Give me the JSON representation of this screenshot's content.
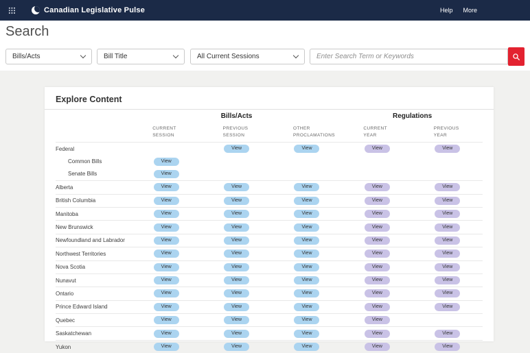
{
  "header": {
    "title": "Canadian Legislative Pulse",
    "links": {
      "help": "Help",
      "more": "More"
    }
  },
  "search": {
    "heading": "Search",
    "filters": [
      {
        "value": "Bills/Acts"
      },
      {
        "value": "Bill Title"
      },
      {
        "value": "All Current Sessions"
      }
    ],
    "placeholder": "Enter Search Term or Keywords"
  },
  "colors": {
    "header_bg": "#1b2a47",
    "accent_red": "#e32230",
    "bills_button": "#abd4f0",
    "regulations_button": "#c9c2e6"
  },
  "explore": {
    "title": "Explore Content",
    "groups": [
      {
        "label": "Bills/Acts",
        "span": 3
      },
      {
        "label": "Regulations",
        "span": 2
      }
    ],
    "columns": [
      {
        "label": "CURRENT SESSION",
        "lines": "CURRENT\nSESSION",
        "group": "bills"
      },
      {
        "label": "PREVIOUS SESSION",
        "lines": "PREVIOUS\nSESSION",
        "group": "bills"
      },
      {
        "label": "OTHER PROCLAMATIONS",
        "lines": "OTHER\nPROCLAMATIONS",
        "group": "bills"
      },
      {
        "label": "CURRENT YEAR",
        "lines": "CURRENT\nYEAR",
        "group": "regulations"
      },
      {
        "label": "PREVIOUS YEAR",
        "lines": "PREVIOUS\nYEAR",
        "group": "regulations"
      }
    ],
    "view_label": "View",
    "rows": [
      {
        "label": "Federal",
        "indent": false,
        "buttons": [
          false,
          true,
          true,
          true,
          true
        ]
      },
      {
        "label": "Common Bills",
        "indent": true,
        "buttons": [
          true,
          false,
          false,
          false,
          false
        ]
      },
      {
        "label": "Senate Bills",
        "indent": true,
        "buttons": [
          true,
          false,
          false,
          false,
          false
        ]
      },
      {
        "label": "Alberta",
        "indent": false,
        "buttons": [
          true,
          true,
          true,
          true,
          true
        ]
      },
      {
        "label": "British Columbia",
        "indent": false,
        "buttons": [
          true,
          true,
          true,
          true,
          true
        ]
      },
      {
        "label": "Manitoba",
        "indent": false,
        "buttons": [
          true,
          true,
          true,
          true,
          true
        ]
      },
      {
        "label": "New Brunswick",
        "indent": false,
        "buttons": [
          true,
          true,
          true,
          true,
          true
        ]
      },
      {
        "label": "Newfoundland and Labrador",
        "indent": false,
        "buttons": [
          true,
          true,
          true,
          true,
          true
        ]
      },
      {
        "label": "Northwest Territories",
        "indent": false,
        "buttons": [
          true,
          true,
          true,
          true,
          true
        ]
      },
      {
        "label": "Nova Scotia",
        "indent": false,
        "buttons": [
          true,
          true,
          true,
          true,
          true
        ]
      },
      {
        "label": "Nunavut",
        "indent": false,
        "buttons": [
          true,
          true,
          true,
          true,
          true
        ]
      },
      {
        "label": "Ontario",
        "indent": false,
        "buttons": [
          true,
          true,
          true,
          true,
          true
        ]
      },
      {
        "label": "Prince Edward Island",
        "indent": false,
        "buttons": [
          true,
          true,
          true,
          true,
          true
        ]
      },
      {
        "label": "Quebec",
        "indent": false,
        "buttons": [
          true,
          true,
          true,
          true,
          false
        ]
      },
      {
        "label": "Saskatchewan",
        "indent": false,
        "buttons": [
          true,
          true,
          true,
          true,
          true
        ]
      },
      {
        "label": "Yukon",
        "indent": false,
        "buttons": [
          true,
          true,
          true,
          true,
          true
        ]
      }
    ]
  }
}
